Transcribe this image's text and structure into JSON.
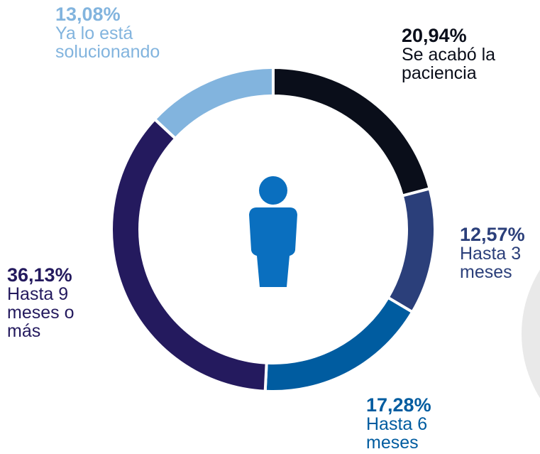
{
  "chart_data": {
    "type": "donut",
    "categories": [
      "Se acabó la paciencia",
      "Hasta 3 meses",
      "Hasta 6 meses",
      "Hasta 9 meses o más",
      "Ya lo está solucionando"
    ],
    "values": [
      20.94,
      12.57,
      17.28,
      36.13,
      13.08
    ],
    "value_labels": [
      "20,94%",
      "12,57%",
      "17,28%",
      "36,13%",
      "13,08%"
    ],
    "colors": [
      "#0a0e1a",
      "#2b3f7a",
      "#005ca0",
      "#241a5e",
      "#82b4de"
    ]
  }
}
